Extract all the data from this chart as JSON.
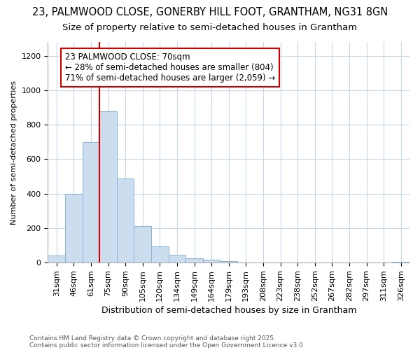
{
  "title1": "23, PALMWOOD CLOSE, GONERBY HILL FOOT, GRANTHAM, NG31 8GN",
  "title2": "Size of property relative to semi-detached houses in Grantham",
  "xlabel": "Distribution of semi-detached houses by size in Grantham",
  "ylabel": "Number of semi-detached properties",
  "categories": [
    "31sqm",
    "46sqm",
    "61sqm",
    "75sqm",
    "90sqm",
    "105sqm",
    "120sqm",
    "134sqm",
    "149sqm",
    "164sqm",
    "179sqm",
    "193sqm",
    "208sqm",
    "223sqm",
    "238sqm",
    "252sqm",
    "267sqm",
    "282sqm",
    "297sqm",
    "311sqm",
    "326sqm"
  ],
  "values": [
    40,
    400,
    700,
    880,
    490,
    210,
    95,
    45,
    25,
    18,
    10,
    0,
    0,
    0,
    0,
    0,
    0,
    0,
    0,
    0,
    5
  ],
  "bar_color": "#ccddf0",
  "bar_edge_color": "#8ab4d4",
  "vline_pos": 2.5,
  "vline_color": "#cc0000",
  "annotation_text": "23 PALMWOOD CLOSE: 70sqm\n← 28% of semi-detached houses are smaller (804)\n71% of semi-detached houses are larger (2,059) →",
  "annotation_box_facecolor": "#ffffff",
  "annotation_box_edgecolor": "#cc0000",
  "ylim": [
    0,
    1280
  ],
  "yticks": [
    0,
    200,
    400,
    600,
    800,
    1000,
    1200
  ],
  "footer1": "Contains HM Land Registry data © Crown copyright and database right 2025.",
  "footer2": "Contains public sector information licensed under the Open Government Licence v3.0.",
  "bg_color": "#ffffff",
  "grid_color": "#c8d8e8",
  "title_fontsize": 10.5,
  "subtitle_fontsize": 9.5,
  "annot_fontsize": 8.5,
  "axis_fontsize": 8,
  "tick_fontsize": 8
}
